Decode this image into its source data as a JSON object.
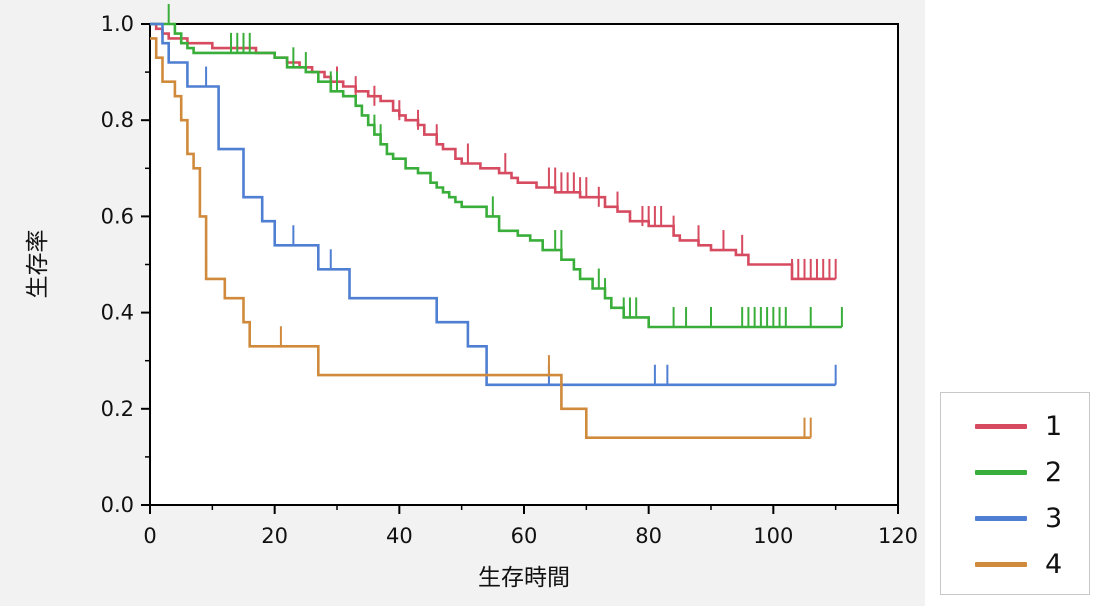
{
  "chart_data": {
    "type": "line",
    "xlabel": "生存時間",
    "ylabel": "生存率",
    "xlim": [
      0,
      120
    ],
    "ylim": [
      0,
      1
    ],
    "xticks": [
      0,
      20,
      40,
      60,
      80,
      100,
      120
    ],
    "yticks": [
      0.0,
      0.2,
      0.4,
      0.6,
      0.8,
      1.0
    ],
    "xtick_labels": [
      "0",
      "20",
      "40",
      "60",
      "80",
      "100",
      "120"
    ],
    "ytick_labels": [
      "0.0",
      "0.2",
      "0.4",
      "0.6",
      "0.8",
      "1.0"
    ],
    "legend_placement": "outside-bottom-right",
    "grid": false,
    "series": [
      {
        "name": "1",
        "color": "#d64b60",
        "steps": [
          [
            0,
            1.0
          ],
          [
            1,
            0.99
          ],
          [
            2,
            0.98
          ],
          [
            3,
            0.97
          ],
          [
            6,
            0.96
          ],
          [
            10,
            0.95
          ],
          [
            17,
            0.94
          ],
          [
            20,
            0.93
          ],
          [
            22,
            0.92
          ],
          [
            24,
            0.91
          ],
          [
            26,
            0.9
          ],
          [
            28,
            0.89
          ],
          [
            29,
            0.88
          ],
          [
            31,
            0.87
          ],
          [
            33,
            0.86
          ],
          [
            35,
            0.85
          ],
          [
            37,
            0.84
          ],
          [
            39,
            0.82
          ],
          [
            40,
            0.81
          ],
          [
            41,
            0.8
          ],
          [
            43,
            0.79
          ],
          [
            44,
            0.77
          ],
          [
            46,
            0.75
          ],
          [
            47,
            0.74
          ],
          [
            49,
            0.72
          ],
          [
            50,
            0.71
          ],
          [
            53,
            0.7
          ],
          [
            56,
            0.69
          ],
          [
            58,
            0.68
          ],
          [
            59,
            0.67
          ],
          [
            62,
            0.66
          ],
          [
            65,
            0.65
          ],
          [
            69,
            0.64
          ],
          [
            73,
            0.62
          ],
          [
            75,
            0.61
          ],
          [
            77,
            0.59
          ],
          [
            80,
            0.58
          ],
          [
            84,
            0.56
          ],
          [
            85,
            0.55
          ],
          [
            88,
            0.54
          ],
          [
            90,
            0.53
          ],
          [
            94,
            0.52
          ],
          [
            96,
            0.5
          ],
          [
            103,
            0.47
          ],
          [
            110,
            0.47
          ]
        ],
        "censors": [
          [
            30,
            0.87
          ],
          [
            33,
            0.85
          ],
          [
            36,
            0.83
          ],
          [
            40,
            0.8
          ],
          [
            43,
            0.78
          ],
          [
            46,
            0.75
          ],
          [
            51,
            0.71
          ],
          [
            57,
            0.69
          ],
          [
            64,
            0.66
          ],
          [
            65,
            0.66
          ],
          [
            66,
            0.65
          ],
          [
            67,
            0.65
          ],
          [
            68,
            0.65
          ],
          [
            69,
            0.64
          ],
          [
            70,
            0.64
          ],
          [
            72,
            0.62
          ],
          [
            75,
            0.61
          ],
          [
            79,
            0.58
          ],
          [
            80,
            0.58
          ],
          [
            81,
            0.58
          ],
          [
            82,
            0.58
          ],
          [
            84,
            0.56
          ],
          [
            88,
            0.54
          ],
          [
            92,
            0.53
          ],
          [
            95,
            0.52
          ],
          [
            103,
            0.47
          ],
          [
            104,
            0.47
          ],
          [
            105,
            0.47
          ],
          [
            106,
            0.47
          ],
          [
            107,
            0.47
          ],
          [
            108,
            0.47
          ],
          [
            109,
            0.47
          ],
          [
            110,
            0.47
          ]
        ]
      },
      {
        "name": "2",
        "color": "#3aae3a",
        "steps": [
          [
            0,
            1.0
          ],
          [
            4,
            0.98
          ],
          [
            5,
            0.96
          ],
          [
            6,
            0.95
          ],
          [
            7,
            0.94
          ],
          [
            20,
            0.93
          ],
          [
            22,
            0.91
          ],
          [
            25,
            0.9
          ],
          [
            27,
            0.88
          ],
          [
            29,
            0.86
          ],
          [
            31,
            0.85
          ],
          [
            33,
            0.83
          ],
          [
            34,
            0.81
          ],
          [
            35,
            0.79
          ],
          [
            36,
            0.77
          ],
          [
            37,
            0.75
          ],
          [
            38,
            0.73
          ],
          [
            39,
            0.72
          ],
          [
            41,
            0.7
          ],
          [
            43,
            0.69
          ],
          [
            45,
            0.67
          ],
          [
            46,
            0.66
          ],
          [
            47,
            0.65
          ],
          [
            48,
            0.64
          ],
          [
            49,
            0.63
          ],
          [
            50,
            0.62
          ],
          [
            54,
            0.6
          ],
          [
            56,
            0.57
          ],
          [
            59,
            0.56
          ],
          [
            61,
            0.55
          ],
          [
            63,
            0.53
          ],
          [
            66,
            0.51
          ],
          [
            68,
            0.49
          ],
          [
            69,
            0.47
          ],
          [
            71,
            0.45
          ],
          [
            73,
            0.43
          ],
          [
            74,
            0.41
          ],
          [
            76,
            0.39
          ],
          [
            80,
            0.37
          ],
          [
            111,
            0.37
          ]
        ],
        "censors": [
          [
            3,
            1.0
          ],
          [
            13,
            0.94
          ],
          [
            14,
            0.94
          ],
          [
            15,
            0.94
          ],
          [
            16,
            0.94
          ],
          [
            23,
            0.91
          ],
          [
            25,
            0.9
          ],
          [
            29,
            0.86
          ],
          [
            30,
            0.86
          ],
          [
            36,
            0.77
          ],
          [
            37,
            0.75
          ],
          [
            55,
            0.6
          ],
          [
            65,
            0.53
          ],
          [
            66,
            0.53
          ],
          [
            72,
            0.45
          ],
          [
            73,
            0.43
          ],
          [
            76,
            0.39
          ],
          [
            77,
            0.39
          ],
          [
            78,
            0.39
          ],
          [
            84,
            0.37
          ],
          [
            86,
            0.37
          ],
          [
            90,
            0.37
          ],
          [
            95,
            0.37
          ],
          [
            96,
            0.37
          ],
          [
            97,
            0.37
          ],
          [
            98,
            0.37
          ],
          [
            99,
            0.37
          ],
          [
            100,
            0.37
          ],
          [
            101,
            0.37
          ],
          [
            102,
            0.37
          ],
          [
            106,
            0.37
          ],
          [
            111,
            0.37
          ]
        ]
      },
      {
        "name": "3",
        "color": "#4f7fd2",
        "steps": [
          [
            0,
            1.0
          ],
          [
            2,
            0.96
          ],
          [
            3,
            0.92
          ],
          [
            6,
            0.87
          ],
          [
            11,
            0.74
          ],
          [
            15,
            0.64
          ],
          [
            18,
            0.59
          ],
          [
            20,
            0.54
          ],
          [
            27,
            0.49
          ],
          [
            32,
            0.43
          ],
          [
            46,
            0.38
          ],
          [
            51,
            0.33
          ],
          [
            54,
            0.25
          ],
          [
            110,
            0.25
          ]
        ],
        "censors": [
          [
            9,
            0.87
          ],
          [
            23,
            0.54
          ],
          [
            29,
            0.49
          ],
          [
            64,
            0.25
          ],
          [
            81,
            0.25
          ],
          [
            83,
            0.25
          ],
          [
            110,
            0.25
          ]
        ]
      },
      {
        "name": "4",
        "color": "#d08a3c",
        "steps": [
          [
            0,
            0.97
          ],
          [
            1,
            0.93
          ],
          [
            2,
            0.88
          ],
          [
            4,
            0.85
          ],
          [
            5,
            0.8
          ],
          [
            6,
            0.73
          ],
          [
            7,
            0.7
          ],
          [
            8,
            0.6
          ],
          [
            9,
            0.47
          ],
          [
            12,
            0.43
          ],
          [
            15,
            0.38
          ],
          [
            16,
            0.33
          ],
          [
            27,
            0.27
          ],
          [
            66,
            0.2
          ],
          [
            70,
            0.14
          ],
          [
            106,
            0.14
          ]
        ],
        "censors": [
          [
            9,
            0.47
          ],
          [
            16,
            0.33
          ],
          [
            21,
            0.33
          ],
          [
            64,
            0.27
          ],
          [
            105,
            0.14
          ],
          [
            106,
            0.14
          ]
        ]
      }
    ]
  },
  "legend": {
    "items": [
      {
        "label": "1",
        "color": "#d64b60"
      },
      {
        "label": "2",
        "color": "#3aae3a"
      },
      {
        "label": "3",
        "color": "#4f7fd2"
      },
      {
        "label": "4",
        "color": "#d08a3c"
      }
    ]
  }
}
